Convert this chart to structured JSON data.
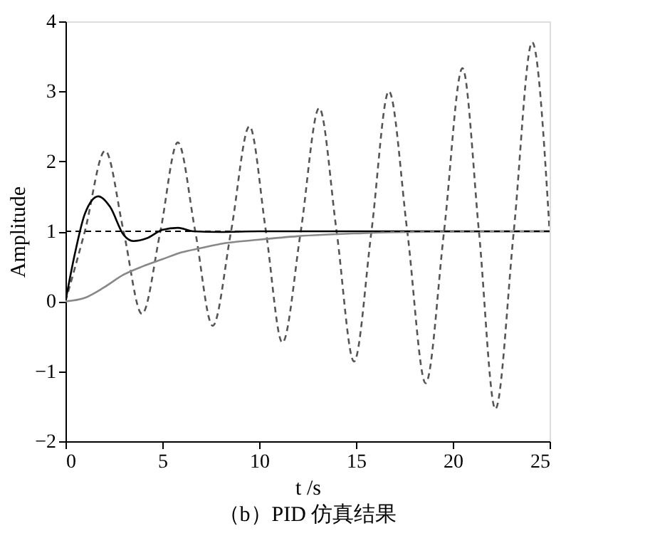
{
  "chart_data": {
    "type": "line",
    "xlabel": "t /s",
    "ylabel": "Amplitude",
    "annotations": [
      "（b）PID 仿真结果"
    ],
    "xlim": [
      0,
      25
    ],
    "xticks": [
      0,
      5,
      10,
      15,
      20,
      25
    ],
    "ylim": [
      -2,
      4
    ],
    "yticks": [
      -2,
      -1,
      0,
      1,
      2,
      3,
      4
    ],
    "grid": false,
    "series": [
      {
        "color": "#555555",
        "line_style": "dashed",
        "x": [
          0,
          1.0,
          2.05,
          3.0,
          3.95,
          4.9,
          5.8,
          6.7,
          7.6,
          8.55,
          9.5,
          10.35,
          11.2,
          12.15,
          13.1,
          14.0,
          14.9,
          15.8,
          16.7,
          17.65,
          18.6,
          19.55,
          20.5,
          21.35,
          22.2,
          23.15,
          24.1,
          25
        ],
        "values": [
          0,
          1,
          2.15,
          1,
          -0.18,
          1,
          2.27,
          1,
          -0.35,
          1,
          2.5,
          1,
          -0.59,
          1,
          2.76,
          1,
          -0.86,
          1,
          3.0,
          1,
          -1.17,
          1,
          3.33,
          1,
          -1.54,
          1,
          3.7,
          1.0
        ]
      },
      {
        "color": "#000000",
        "line_style": "solid",
        "x": [
          0,
          0.5,
          1,
          1.7,
          2.3,
          3,
          3.5,
          4.2,
          5,
          5.8,
          6.6,
          8,
          10,
          25
        ],
        "values": [
          0,
          0.7,
          1.25,
          1.5,
          1.35,
          0.95,
          0.86,
          0.9,
          1.02,
          1.05,
          1.0,
          0.99,
          1.0,
          1.0
        ]
      },
      {
        "color": "#888888",
        "line_style": "solid",
        "x": [
          0,
          1,
          2,
          3,
          4,
          5,
          6,
          7,
          8,
          10,
          12,
          15,
          18,
          25
        ],
        "values": [
          0,
          0.05,
          0.2,
          0.38,
          0.5,
          0.6,
          0.7,
          0.76,
          0.82,
          0.88,
          0.93,
          0.97,
          0.99,
          1.0
        ]
      }
    ],
    "ref_lines": [
      {
        "axis": "y",
        "value": 1,
        "color": "#000000",
        "line_style": "dashed"
      }
    ]
  }
}
